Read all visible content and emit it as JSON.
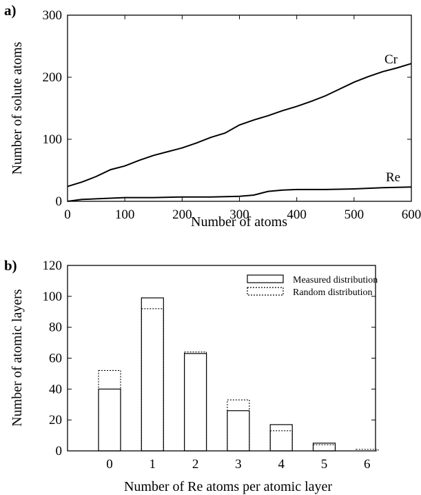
{
  "chart_data": [
    {
      "panel_label": "a)",
      "type": "line",
      "xlabel": "Number of atoms",
      "ylabel": "Number of solute atoms",
      "xlim": [
        0,
        600
      ],
      "ylim": [
        0,
        300
      ],
      "xticks": [
        0,
        100,
        200,
        300,
        400,
        500,
        600
      ],
      "yticks": [
        0,
        100,
        200,
        300
      ],
      "series": [
        {
          "name": "Cr",
          "x": [
            0,
            25,
            50,
            75,
            100,
            125,
            150,
            175,
            200,
            225,
            250,
            275,
            300,
            325,
            350,
            375,
            400,
            425,
            450,
            475,
            500,
            525,
            550,
            575,
            600
          ],
          "values": [
            24,
            31,
            40,
            51,
            57,
            66,
            74,
            80,
            86,
            94,
            103,
            110,
            123,
            131,
            138,
            146,
            153,
            161,
            170,
            181,
            192,
            201,
            209,
            215,
            222
          ]
        },
        {
          "name": "Re",
          "x": [
            0,
            25,
            50,
            75,
            100,
            150,
            200,
            250,
            300,
            325,
            350,
            375,
            400,
            450,
            500,
            550,
            600
          ],
          "values": [
            0,
            3,
            4,
            5,
            6,
            6,
            7,
            7,
            8,
            10,
            16,
            18,
            19,
            19,
            20,
            22,
            23
          ]
        }
      ]
    },
    {
      "panel_label": "b)",
      "type": "bar",
      "xlabel": "Number of Re atoms per atomic layer",
      "ylabel": "Number of atomic layers",
      "categories": [
        "0",
        "1",
        "2",
        "3",
        "4",
        "5",
        "6"
      ],
      "ylim": [
        0,
        120
      ],
      "yticks": [
        0,
        20,
        40,
        60,
        80,
        100,
        120
      ],
      "legend_position": "top-right",
      "series": [
        {
          "name": "Measured distribution",
          "style": "solid",
          "values": [
            40,
            99,
            63,
            26,
            17,
            5,
            0
          ]
        },
        {
          "name": "Random distribution",
          "style": "dotted",
          "values": [
            52,
            92,
            64,
            33,
            13,
            4,
            1
          ]
        }
      ]
    }
  ]
}
